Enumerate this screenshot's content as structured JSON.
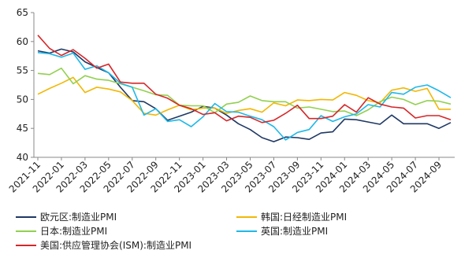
{
  "chart_data": {
    "type": "line",
    "title": "",
    "xlabel": "",
    "ylabel": "",
    "ylim": [
      40,
      65
    ],
    "yticks": [
      40,
      45,
      50,
      55,
      60,
      65
    ],
    "grid": false,
    "legend_position": "bottom",
    "x": [
      "2021-11",
      "2021-12",
      "2022-01",
      "2022-02",
      "2022-03",
      "2022-04",
      "2022-05",
      "2022-06",
      "2022-07",
      "2022-08",
      "2022-09",
      "2022-10",
      "2022-11",
      "2022-12",
      "2023-01",
      "2023-02",
      "2023-03",
      "2023-04",
      "2023-05",
      "2023-06",
      "2023-07",
      "2023-08",
      "2023-09",
      "2023-10",
      "2023-11",
      "2023-12",
      "2024-01",
      "2024-02",
      "2024-03",
      "2024-04",
      "2024-05",
      "2024-06",
      "2024-07",
      "2024-08",
      "2024-09",
      "2024-10"
    ],
    "xtick_labels": [
      "2021-11",
      "2022-01",
      "2022-03",
      "2022-05",
      "2022-07",
      "2022-09",
      "2022-11",
      "2023-01",
      "2023-03",
      "2023-05",
      "2023-07",
      "2023-09",
      "2023-11",
      "2024-01",
      "2024-03",
      "2024-05",
      "2024-07",
      "2024-09"
    ],
    "series": [
      {
        "name": "欧元区:制造业PMI",
        "color": "#1f3864",
        "values": [
          58.4,
          58.0,
          58.7,
          58.2,
          56.5,
          55.5,
          54.6,
          52.1,
          49.8,
          49.6,
          48.4,
          46.4,
          47.1,
          47.8,
          48.8,
          48.5,
          47.3,
          45.8,
          44.8,
          43.4,
          42.7,
          43.5,
          43.4,
          43.1,
          44.2,
          44.4,
          46.6,
          46.5,
          46.1,
          45.7,
          47.3,
          45.8,
          45.8,
          45.8,
          45.0,
          46.0
        ]
      },
      {
        "name": "韩国:日经制造业PMI",
        "color": "#f2b705",
        "values": [
          50.9,
          51.9,
          52.8,
          53.8,
          51.2,
          52.1,
          51.8,
          51.3,
          49.8,
          47.6,
          47.3,
          48.2,
          49.0,
          48.2,
          48.5,
          48.5,
          47.6,
          48.1,
          48.4,
          47.8,
          49.4,
          48.9,
          49.9,
          49.8,
          50.0,
          49.9,
          51.2,
          50.7,
          49.8,
          49.4,
          51.6,
          52.0,
          51.4,
          51.9,
          48.3,
          48.3
        ]
      },
      {
        "name": "日本:制造业PMI",
        "color": "#92d050",
        "values": [
          54.5,
          54.3,
          55.4,
          52.7,
          54.1,
          53.5,
          53.3,
          52.7,
          52.1,
          51.5,
          50.8,
          50.7,
          49.0,
          48.9,
          48.9,
          47.7,
          49.2,
          49.5,
          50.6,
          49.8,
          49.6,
          49.6,
          48.5,
          48.7,
          48.3,
          47.9,
          48.0,
          47.2,
          48.2,
          49.6,
          50.4,
          50.0,
          49.1,
          49.8,
          49.7,
          49.2
        ]
      },
      {
        "name": "英国:制造业PMI",
        "color": "#1fb8e8",
        "values": [
          58.1,
          57.9,
          57.3,
          58.0,
          55.2,
          55.8,
          54.6,
          52.8,
          52.1,
          47.3,
          48.4,
          46.2,
          46.5,
          45.3,
          47.0,
          49.3,
          47.9,
          47.8,
          47.1,
          46.5,
          45.3,
          43.0,
          44.3,
          44.8,
          47.2,
          46.2,
          47.0,
          47.5,
          49.1,
          48.7,
          51.2,
          50.9,
          52.1,
          52.5,
          51.5,
          50.3
        ]
      },
      {
        "name": "美国:供应管理协会(ISM):制造业PMI",
        "color": "#d62728",
        "values": [
          61.1,
          58.8,
          57.6,
          58.6,
          57.1,
          55.4,
          56.1,
          53.0,
          52.8,
          52.8,
          50.9,
          50.2,
          49.0,
          48.4,
          47.4,
          47.7,
          46.3,
          47.1,
          46.9,
          46.0,
          46.4,
          47.6,
          49.0,
          46.7,
          46.7,
          47.1,
          49.1,
          47.8,
          50.3,
          49.2,
          48.7,
          48.5,
          46.8,
          47.2,
          47.2,
          46.5
        ]
      }
    ]
  }
}
